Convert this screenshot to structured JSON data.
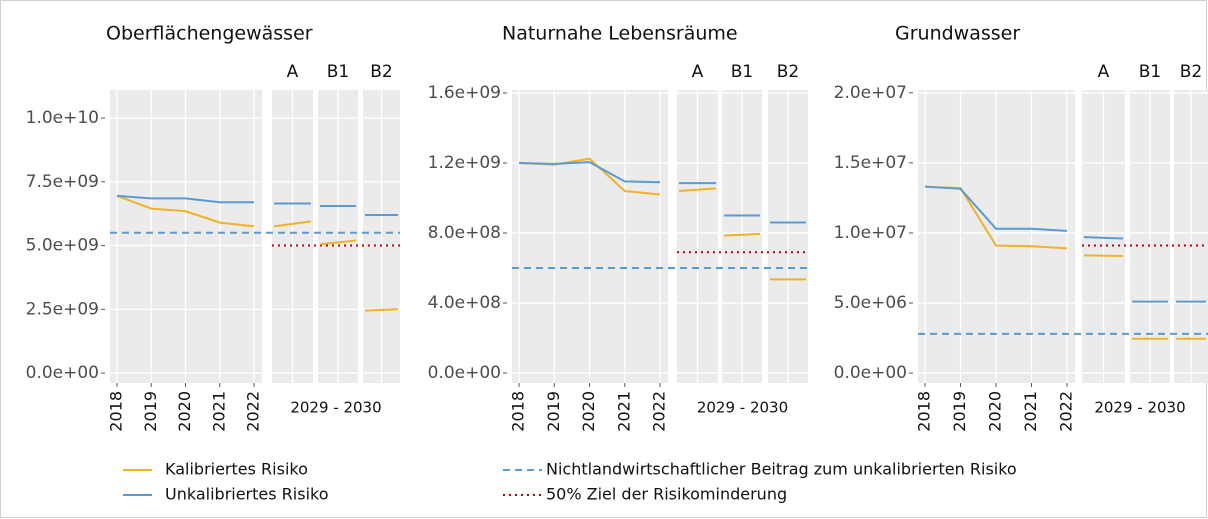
{
  "legend": [
    {
      "name": "Kalibriertes Risiko",
      "color": "#f0b323",
      "style": "solid"
    },
    {
      "name": "Unkalibriertes Risiko",
      "color": "#5b9bd5",
      "style": "solid"
    },
    {
      "name": "Nichtlandwirtschaftlicher Beitrag zum unkalibrierten Risiko",
      "color": "#5b9bd5",
      "style": "dashed"
    },
    {
      "name": "50% Ziel der Risikominderung",
      "color": "#c00000",
      "style": "dotted"
    }
  ],
  "chart_data": [
    {
      "type": "line",
      "title": "Oberflächengewässer",
      "categories": [
        "2018",
        "2019",
        "2020",
        "2021",
        "2022"
      ],
      "scenario_axis_label": "2029 - 2030",
      "ylim": [
        -390000000,
        11100000000
      ],
      "yticks": [
        {
          "value": 0,
          "label": "0.0e+00"
        },
        {
          "value": 2500000000,
          "label": "2.5e+09"
        },
        {
          "value": 5000000000,
          "label": "5.0e+09"
        },
        {
          "value": 7500000000,
          "label": "7.5e+09"
        },
        {
          "value": 10000000000,
          "label": "1.0e+10"
        }
      ],
      "series": [
        {
          "color": "#f0b323",
          "values": [
            6950000000,
            6450000000,
            6350000000,
            5900000000,
            5750000000
          ]
        },
        {
          "color": "#5b9bd5",
          "values": [
            6950000000,
            6850000000,
            6850000000,
            6700000000,
            6700000000
          ]
        }
      ],
      "reference": 5500000000,
      "target": 5000000000,
      "scenarios": [
        {
          "label": "A",
          "values": [
            [
              5750000000,
              5950000000
            ],
            [
              6650000000,
              6650000000
            ]
          ]
        },
        {
          "label": "B1",
          "values": [
            [
              5050000000,
              5200000000
            ],
            [
              6550000000,
              6550000000
            ]
          ]
        },
        {
          "label": "B2",
          "values": [
            [
              2450000000,
              2500000000
            ],
            [
              6200000000,
              6200000000
            ]
          ]
        }
      ]
    },
    {
      "type": "line",
      "title": "Naturnahe Lebensräume",
      "categories": [
        "2018",
        "2019",
        "2020",
        "2021",
        "2022"
      ],
      "scenario_axis_label": "2029 - 2030",
      "ylim": [
        -57000000,
        1617000000
      ],
      "yticks": [
        {
          "value": 0,
          "label": "0.0e+00"
        },
        {
          "value": 400000000,
          "label": "4.0e+08"
        },
        {
          "value": 800000000,
          "label": "8.0e+08"
        },
        {
          "value": 1200000000,
          "label": "1.2e+09"
        },
        {
          "value": 1600000000,
          "label": "1.6e+09"
        }
      ],
      "series": [
        {
          "color": "#f0b323",
          "values": [
            1200000000,
            1190000000,
            1225000000,
            1040000000,
            1020000000
          ]
        },
        {
          "color": "#5b9bd5",
          "values": [
            1200000000,
            1195000000,
            1205000000,
            1095000000,
            1090000000
          ]
        }
      ],
      "reference": 600000000,
      "target": 690000000,
      "scenarios": [
        {
          "label": "A",
          "values": [
            [
              1040000000,
              1055000000
            ],
            [
              1085000000,
              1085000000
            ]
          ]
        },
        {
          "label": "B1",
          "values": [
            [
              785000000,
              795000000
            ],
            [
              900000000,
              900000000
            ]
          ]
        },
        {
          "label": "B2",
          "values": [
            [
              535000000,
              535000000
            ],
            [
              860000000,
              860000000
            ]
          ]
        }
      ]
    },
    {
      "type": "line",
      "title": "Grundwasser",
      "categories": [
        "2018",
        "2019",
        "2020",
        "2021",
        "2022"
      ],
      "scenario_axis_label": "2029 - 2030",
      "ylim": [
        -710000,
        20200000
      ],
      "yticks": [
        {
          "value": 0,
          "label": "0.0e+00"
        },
        {
          "value": 5000000,
          "label": "5.0e+06"
        },
        {
          "value": 10000000,
          "label": "1.0e+07"
        },
        {
          "value": 15000000,
          "label": "1.5e+07"
        },
        {
          "value": 20000000,
          "label": "2.0e+07"
        }
      ],
      "series": [
        {
          "color": "#f0b323",
          "values": [
            13300000,
            13200000,
            9100000,
            9050000,
            8900000
          ]
        },
        {
          "color": "#5b9bd5",
          "values": [
            13300000,
            13150000,
            10300000,
            10300000,
            10150000
          ]
        }
      ],
      "reference": 2800000,
      "target": 9100000,
      "scenarios": [
        {
          "label": "A",
          "values": [
            [
              8400000,
              8350000
            ],
            [
              9700000,
              9600000
            ]
          ]
        },
        {
          "label": "B1",
          "values": [
            [
              2450000,
              2450000
            ],
            [
              5100000,
              5100000
            ]
          ]
        },
        {
          "label": "B2",
          "values": [
            [
              2450000,
              2450000
            ],
            [
              5100000,
              5100000
            ]
          ]
        }
      ]
    }
  ]
}
